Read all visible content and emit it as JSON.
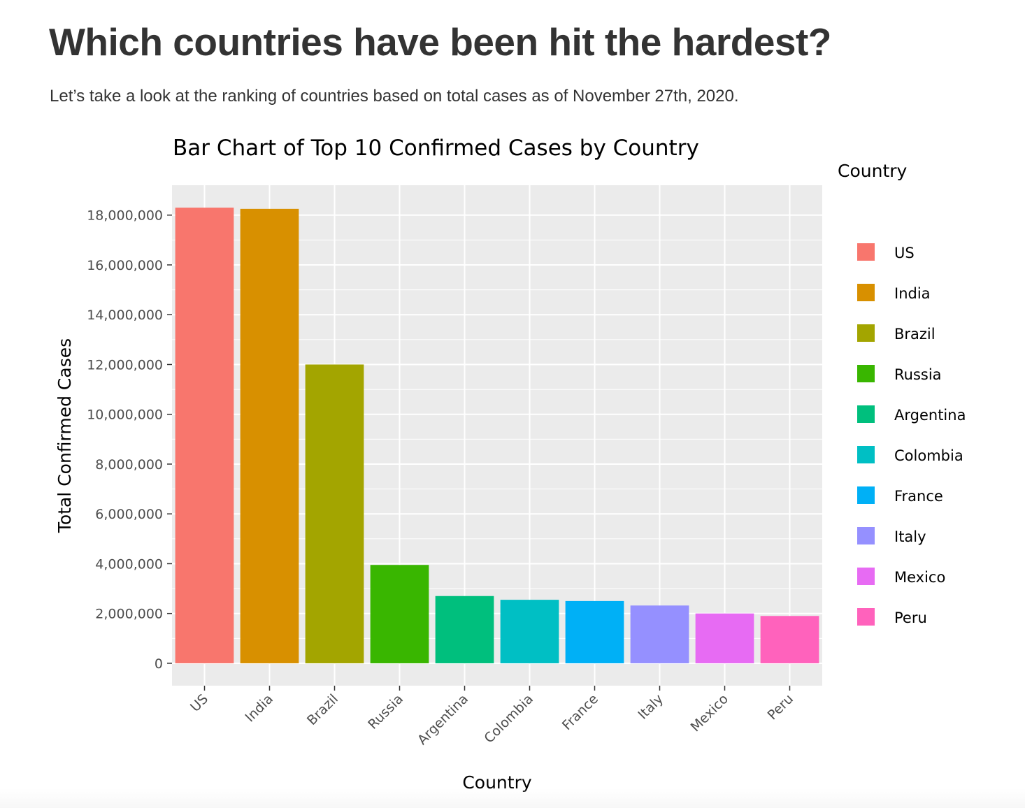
{
  "page": {
    "heading": "Which countries have been hit the hardest?",
    "subtitle": "Let’s take a look at the ranking of countries based on total cases as of November 27th, 2020."
  },
  "chart_data": {
    "type": "bar",
    "title": "Bar Chart of Top 10 Confirmed Cases by Country",
    "xlabel": "Country",
    "ylabel": "Total Confirmed Cases",
    "categories": [
      "US",
      "India",
      "Brazil",
      "Russia",
      "Argentina",
      "Colombia",
      "France",
      "Italy",
      "Mexico",
      "Peru"
    ],
    "values": [
      18300000,
      18250000,
      12000000,
      3950000,
      2700000,
      2550000,
      2500000,
      2320000,
      2000000,
      1900000
    ],
    "colors": [
      "#F8766D",
      "#D89000",
      "#A3A500",
      "#39B600",
      "#00BF7D",
      "#00BFC4",
      "#00B0F6",
      "#9590FF",
      "#E76BF3",
      "#FF62BC"
    ],
    "ylim": [
      -900000,
      19200000
    ],
    "yticks": [
      0,
      2000000,
      4000000,
      6000000,
      8000000,
      10000000,
      12000000,
      14000000,
      16000000,
      18000000
    ],
    "ytick_labels": [
      "0",
      "2,000,000",
      "4,000,000",
      "6,000,000",
      "8,000,000",
      "10,000,000",
      "12,000,000",
      "14,000,000",
      "16,000,000",
      "18,000,000"
    ],
    "legend": {
      "title": "Country",
      "position": "right",
      "entries": [
        "US",
        "India",
        "Brazil",
        "Russia",
        "Argentina",
        "Colombia",
        "France",
        "Italy",
        "Mexico",
        "Peru"
      ]
    },
    "grid": true,
    "panel_background": "#EBEBEB",
    "grid_color": "#FFFFFF"
  }
}
